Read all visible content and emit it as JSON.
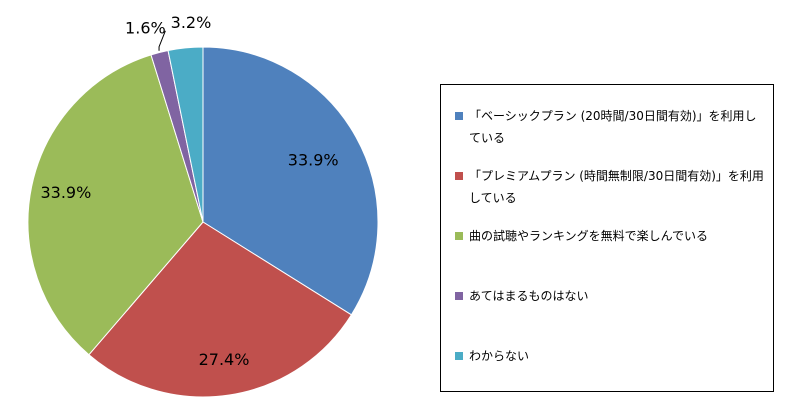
{
  "chart_data": {
    "type": "pie",
    "categories": [
      "「ベーシックプラン (20時間/30日間有効)」を利用している",
      "「プレミアムプラン (時間無制限/30日間有効)」を利用している",
      "曲の試聴やランキングを無料で楽しんでいる",
      "あてはまるものはない",
      "わからない"
    ],
    "values": [
      33.9,
      27.4,
      33.9,
      1.6,
      3.2
    ],
    "labels": [
      "33.9%",
      "27.4%",
      "33.9%",
      "1.6%",
      "3.2%"
    ],
    "colors": [
      "#4F81BD",
      "#C0504D",
      "#9BBB59",
      "#8064A2",
      "#4BACC6"
    ],
    "legend_placement": "right",
    "title": ""
  }
}
